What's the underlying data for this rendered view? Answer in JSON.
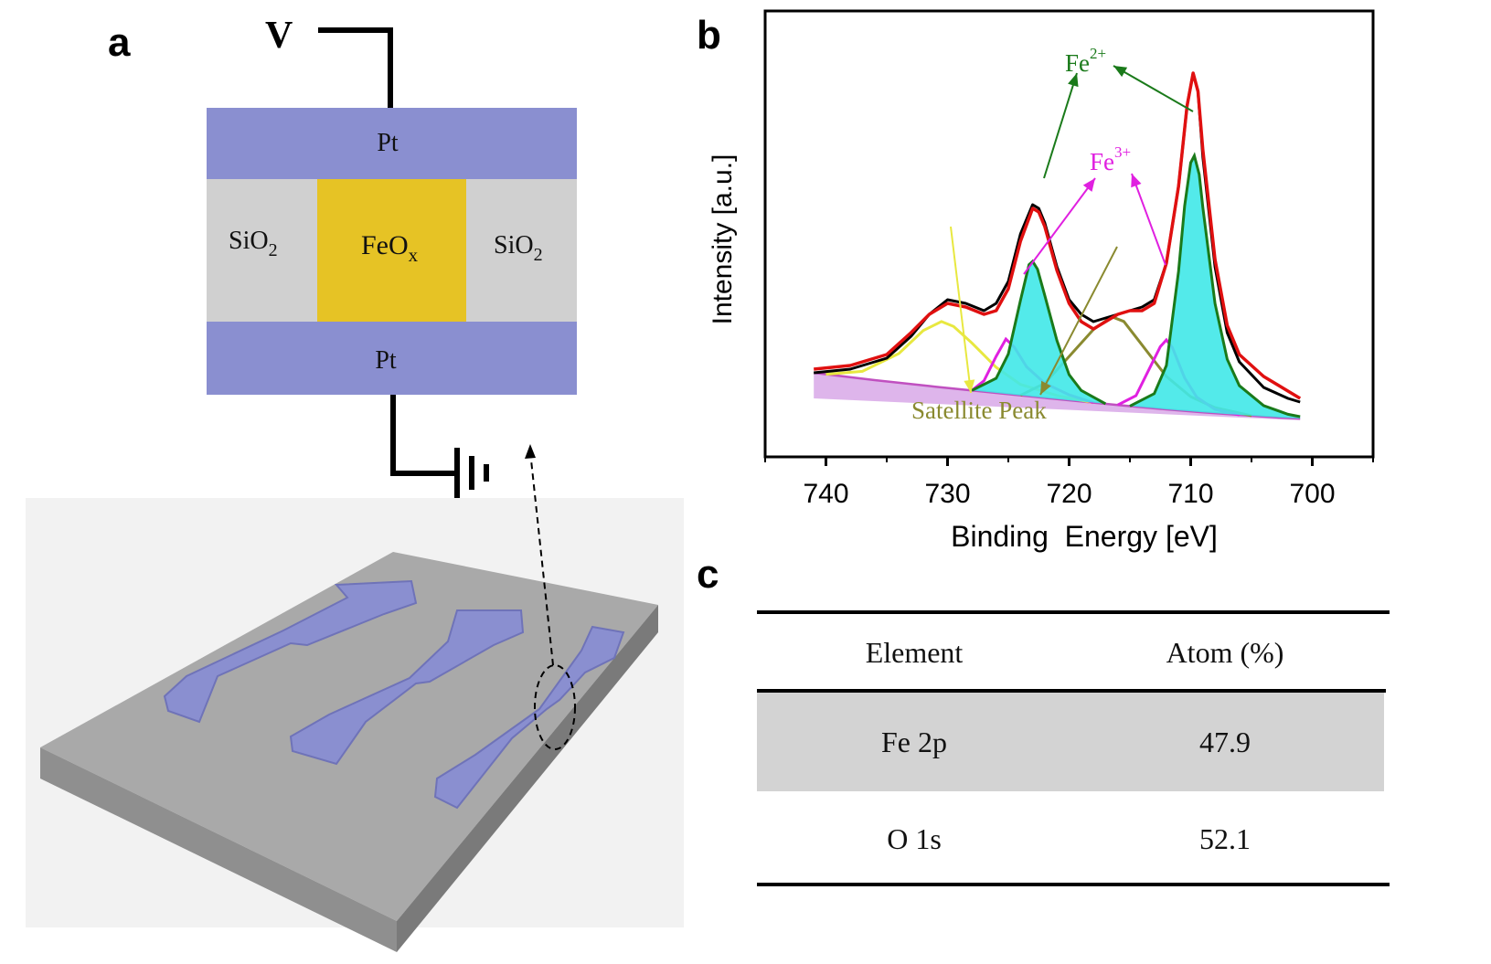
{
  "panels": {
    "a": "a",
    "b": "b",
    "c": "c"
  },
  "device": {
    "voltage_label": "V",
    "top_electrode": "Pt",
    "bottom_electrode": "Pt",
    "left_insulator": {
      "base": "SiO",
      "sub": "2"
    },
    "right_insulator": {
      "base": "SiO",
      "sub": "2"
    },
    "switching_layer": {
      "base": "FeO",
      "sub": "x"
    },
    "colors": {
      "electrode": "#8a8fd0",
      "insulator": "#d0d0d0",
      "oxide": "#e6c325",
      "substrate": "#a9a9a9"
    }
  },
  "chart_data": {
    "type": "line",
    "title": "",
    "xlabel": "Binding  Energy [eV]",
    "ylabel": "Intensity [a.u.]",
    "xlim": [
      745,
      695
    ],
    "x_reversed": true,
    "xticks": [
      740,
      730,
      720,
      710,
      700
    ],
    "yticks_labeled": false,
    "series": [
      {
        "key": "measured",
        "color": "#000000",
        "points": [
          [
            741,
            0.13
          ],
          [
            738,
            0.14
          ],
          [
            735,
            0.17
          ],
          [
            733,
            0.23
          ],
          [
            731.5,
            0.29
          ],
          [
            730,
            0.33
          ],
          [
            728.5,
            0.32
          ],
          [
            727,
            0.3
          ],
          [
            726,
            0.32
          ],
          [
            725,
            0.38
          ],
          [
            724,
            0.51
          ],
          [
            723,
            0.59
          ],
          [
            722.5,
            0.58
          ],
          [
            722,
            0.54
          ],
          [
            721,
            0.42
          ],
          [
            720,
            0.33
          ],
          [
            719,
            0.29
          ],
          [
            718,
            0.27
          ],
          [
            717,
            0.28
          ],
          [
            716,
            0.29
          ],
          [
            715,
            0.3
          ],
          [
            714,
            0.31
          ],
          [
            713,
            0.33
          ],
          [
            712,
            0.43
          ],
          [
            711,
            0.64
          ],
          [
            710.3,
            0.86
          ],
          [
            709.8,
            0.95
          ],
          [
            709.4,
            0.9
          ],
          [
            709,
            0.72
          ],
          [
            708,
            0.42
          ],
          [
            707,
            0.24
          ],
          [
            706,
            0.16
          ],
          [
            704,
            0.09
          ],
          [
            702,
            0.06
          ],
          [
            701,
            0.05
          ]
        ]
      },
      {
        "key": "envelope",
        "color": "#e01010",
        "points": [
          [
            741,
            0.14
          ],
          [
            738,
            0.15
          ],
          [
            735,
            0.18
          ],
          [
            733,
            0.24
          ],
          [
            731.5,
            0.29
          ],
          [
            730,
            0.32
          ],
          [
            728.5,
            0.31
          ],
          [
            727,
            0.29
          ],
          [
            726,
            0.3
          ],
          [
            725,
            0.36
          ],
          [
            724,
            0.49
          ],
          [
            723,
            0.58
          ],
          [
            722.5,
            0.57
          ],
          [
            722,
            0.53
          ],
          [
            721,
            0.41
          ],
          [
            720,
            0.32
          ],
          [
            719,
            0.27
          ],
          [
            718,
            0.25
          ],
          [
            717,
            0.27
          ],
          [
            716,
            0.29
          ],
          [
            715,
            0.3
          ],
          [
            714,
            0.3
          ],
          [
            713,
            0.32
          ],
          [
            712,
            0.43
          ],
          [
            711,
            0.64
          ],
          [
            710.3,
            0.86
          ],
          [
            709.8,
            0.95
          ],
          [
            709.4,
            0.9
          ],
          [
            709,
            0.74
          ],
          [
            708,
            0.44
          ],
          [
            707,
            0.26
          ],
          [
            706,
            0.18
          ],
          [
            704,
            0.12
          ],
          [
            702,
            0.08
          ],
          [
            701,
            0.06
          ]
        ]
      },
      {
        "key": "fe2p_3_2",
        "color": "#1a7a1a",
        "fill": "#40e8e8",
        "points": [
          [
            728,
            0.0
          ],
          [
            726,
            0.04
          ],
          [
            725,
            0.11
          ],
          [
            724,
            0.26
          ],
          [
            723.3,
            0.36
          ],
          [
            723,
            0.37
          ],
          [
            722.6,
            0.35
          ],
          [
            722,
            0.28
          ],
          [
            721,
            0.16
          ],
          [
            720,
            0.07
          ],
          [
            719,
            0.03
          ],
          [
            717,
            0.0
          ]
        ]
      },
      {
        "key": "fe2p_1_2",
        "color": "#1a7a1a",
        "fill": "#40e8e8",
        "points": [
          [
            715,
            0.0
          ],
          [
            713,
            0.04
          ],
          [
            712,
            0.12
          ],
          [
            711,
            0.38
          ],
          [
            710.5,
            0.56
          ],
          [
            710,
            0.68
          ],
          [
            709.7,
            0.7
          ],
          [
            709.3,
            0.65
          ],
          [
            709,
            0.56
          ],
          [
            708,
            0.3
          ],
          [
            707,
            0.15
          ],
          [
            706,
            0.08
          ],
          [
            704,
            0.03
          ],
          [
            702,
            0.01
          ],
          [
            701,
            0.005
          ]
        ]
      },
      {
        "key": "fe3p_3_2",
        "color": "#e020e0",
        "points": [
          [
            728,
            0.0
          ],
          [
            727,
            0.03
          ],
          [
            726,
            0.1
          ],
          [
            725.2,
            0.15
          ],
          [
            724.5,
            0.13
          ],
          [
            723.5,
            0.08
          ],
          [
            722,
            0.04
          ],
          [
            720,
            0.015
          ],
          [
            718,
            0.0
          ]
        ]
      },
      {
        "key": "fe3p_1_2",
        "color": "#e020e0",
        "points": [
          [
            716,
            0.0
          ],
          [
            714.5,
            0.03
          ],
          [
            713.5,
            0.1
          ],
          [
            712.5,
            0.17
          ],
          [
            712,
            0.19
          ],
          [
            711.5,
            0.17
          ],
          [
            710.5,
            0.09
          ],
          [
            709.5,
            0.04
          ],
          [
            708,
            0.01
          ],
          [
            706,
            0.0
          ]
        ]
      },
      {
        "key": "satellite_1",
        "color": "#e8e840",
        "points": [
          [
            740,
            0.0
          ],
          [
            737,
            0.02
          ],
          [
            734,
            0.08
          ],
          [
            732,
            0.15
          ],
          [
            730.5,
            0.18
          ],
          [
            729.5,
            0.17
          ],
          [
            728,
            0.13
          ],
          [
            726,
            0.07
          ],
          [
            724,
            0.03
          ],
          [
            721,
            0.01
          ],
          [
            718,
            0.0
          ]
        ]
      },
      {
        "key": "satellite_2",
        "color": "#8a8a30",
        "points": [
          [
            724,
            0.0
          ],
          [
            722,
            0.04
          ],
          [
            720,
            0.12
          ],
          [
            718,
            0.2
          ],
          [
            716.5,
            0.24
          ],
          [
            715.5,
            0.23
          ],
          [
            714,
            0.17
          ],
          [
            712,
            0.09
          ],
          [
            710,
            0.04
          ],
          [
            708,
            0.015
          ],
          [
            705,
            0.0
          ]
        ]
      }
    ],
    "baseline": {
      "color": "#c050c0",
      "fill": "#d8a8e8",
      "points": [
        [
          741,
          0.13
        ],
        [
          736,
          0.11
        ],
        [
          731,
          0.092
        ],
        [
          726,
          0.075
        ],
        [
          721,
          0.058
        ],
        [
          716,
          0.042
        ],
        [
          712,
          0.03
        ],
        [
          709,
          0.022
        ],
        [
          706,
          0.015
        ],
        [
          703,
          0.008
        ],
        [
          701,
          0.005
        ]
      ]
    },
    "annotations": [
      {
        "text": "Fe",
        "sup": "2+",
        "color": "#1a7a1a"
      },
      {
        "text": "Fe",
        "sup": "3+",
        "color": "#e020e0"
      },
      {
        "text": "Satellite Peak",
        "color": "#8a8a30"
      }
    ]
  },
  "table": {
    "headers": [
      "Element",
      "Atom (%)"
    ],
    "rows": [
      {
        "element": "Fe 2p",
        "atom": "47.9"
      },
      {
        "element": "O 1s",
        "atom": "52.1"
      }
    ]
  }
}
